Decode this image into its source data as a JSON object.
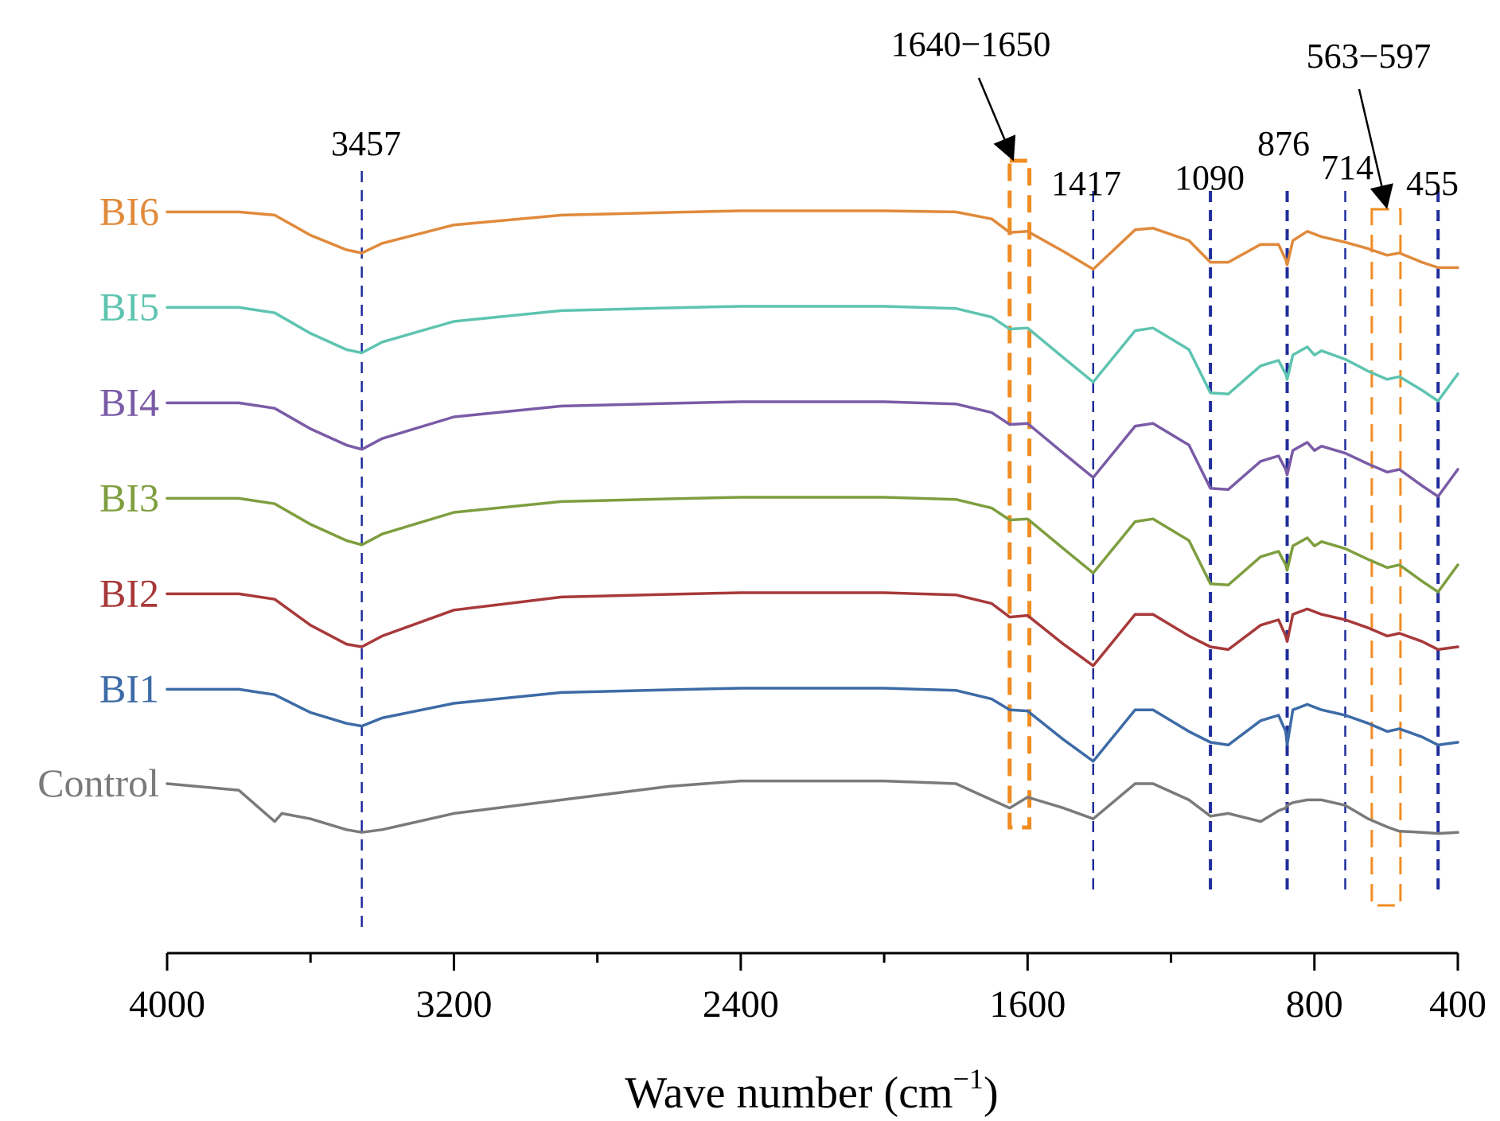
{
  "chart_data": {
    "type": "line",
    "title": "",
    "xlabel": "Wave number (cm",
    "xlabel_sup": "−1",
    "xlabel_close": ")",
    "ylabel": "",
    "xlim": [
      4000,
      400
    ],
    "x_ticks": [
      4000,
      3200,
      2400,
      1600,
      800,
      400
    ],
    "x_tick_labels": [
      "4000",
      "3200",
      "2400",
      "1600",
      "800",
      "400"
    ],
    "x_minor_ticks": [
      3600,
      2800,
      2000,
      1200
    ],
    "series": [
      {
        "name": "BI6",
        "color": "#E08A3C",
        "offset": 6,
        "points": [
          [
            4000,
            0.02
          ],
          [
            3800,
            0.02
          ],
          [
            3700,
            0.08
          ],
          [
            3600,
            0.45
          ],
          [
            3500,
            0.72
          ],
          [
            3457,
            0.78
          ],
          [
            3400,
            0.6
          ],
          [
            3200,
            0.26
          ],
          [
            2900,
            0.08
          ],
          [
            2600,
            0.03
          ],
          [
            2400,
            0.0
          ],
          [
            2000,
            0.0
          ],
          [
            1800,
            0.02
          ],
          [
            1700,
            0.15
          ],
          [
            1650,
            0.4
          ],
          [
            1600,
            0.38
          ],
          [
            1500,
            0.75
          ],
          [
            1417,
            1.08
          ],
          [
            1300,
            0.35
          ],
          [
            1250,
            0.32
          ],
          [
            1150,
            0.55
          ],
          [
            1090,
            0.95
          ],
          [
            1040,
            0.95
          ],
          [
            950,
            0.62
          ],
          [
            900,
            0.62
          ],
          [
            880,
            0.9
          ],
          [
            876,
            1.0
          ],
          [
            860,
            0.55
          ],
          [
            820,
            0.38
          ],
          [
            780,
            0.48
          ],
          [
            714,
            0.58
          ],
          [
            650,
            0.7
          ],
          [
            597,
            0.82
          ],
          [
            563,
            0.78
          ],
          [
            500,
            0.95
          ],
          [
            455,
            1.05
          ],
          [
            400,
            1.05
          ]
        ]
      },
      {
        "name": "BI5",
        "color": "#5EC4B0",
        "offset": 5,
        "points": [
          [
            4000,
            0.02
          ],
          [
            3800,
            0.02
          ],
          [
            3700,
            0.12
          ],
          [
            3600,
            0.5
          ],
          [
            3500,
            0.8
          ],
          [
            3457,
            0.86
          ],
          [
            3400,
            0.66
          ],
          [
            3200,
            0.28
          ],
          [
            2900,
            0.08
          ],
          [
            2600,
            0.03
          ],
          [
            2400,
            0.0
          ],
          [
            2000,
            0.0
          ],
          [
            1800,
            0.04
          ],
          [
            1700,
            0.2
          ],
          [
            1650,
            0.42
          ],
          [
            1600,
            0.4
          ],
          [
            1500,
            0.95
          ],
          [
            1417,
            1.4
          ],
          [
            1300,
            0.45
          ],
          [
            1250,
            0.4
          ],
          [
            1150,
            0.8
          ],
          [
            1090,
            1.6
          ],
          [
            1040,
            1.62
          ],
          [
            950,
            1.1
          ],
          [
            900,
            1.0
          ],
          [
            880,
            1.25
          ],
          [
            876,
            1.35
          ],
          [
            860,
            0.9
          ],
          [
            820,
            0.75
          ],
          [
            800,
            0.9
          ],
          [
            780,
            0.82
          ],
          [
            714,
            0.98
          ],
          [
            650,
            1.2
          ],
          [
            597,
            1.35
          ],
          [
            563,
            1.3
          ],
          [
            500,
            1.55
          ],
          [
            455,
            1.75
          ],
          [
            400,
            1.25
          ]
        ]
      },
      {
        "name": "BI4",
        "color": "#7A5BA6",
        "offset": 4,
        "points": [
          [
            4000,
            0.02
          ],
          [
            3800,
            0.02
          ],
          [
            3700,
            0.12
          ],
          [
            3600,
            0.5
          ],
          [
            3500,
            0.8
          ],
          [
            3457,
            0.88
          ],
          [
            3400,
            0.68
          ],
          [
            3200,
            0.28
          ],
          [
            2900,
            0.08
          ],
          [
            2600,
            0.03
          ],
          [
            2400,
            0.0
          ],
          [
            2000,
            0.0
          ],
          [
            1800,
            0.04
          ],
          [
            1700,
            0.2
          ],
          [
            1650,
            0.42
          ],
          [
            1600,
            0.4
          ],
          [
            1500,
            0.95
          ],
          [
            1417,
            1.4
          ],
          [
            1300,
            0.45
          ],
          [
            1250,
            0.4
          ],
          [
            1150,
            0.8
          ],
          [
            1090,
            1.6
          ],
          [
            1040,
            1.62
          ],
          [
            950,
            1.1
          ],
          [
            900,
            1.0
          ],
          [
            880,
            1.25
          ],
          [
            876,
            1.35
          ],
          [
            860,
            0.9
          ],
          [
            820,
            0.75
          ],
          [
            800,
            0.9
          ],
          [
            780,
            0.82
          ],
          [
            714,
            0.95
          ],
          [
            650,
            1.15
          ],
          [
            597,
            1.3
          ],
          [
            563,
            1.25
          ],
          [
            500,
            1.55
          ],
          [
            455,
            1.75
          ],
          [
            400,
            1.25
          ]
        ]
      },
      {
        "name": "BI3",
        "color": "#7E9E3F",
        "offset": 3,
        "points": [
          [
            4000,
            0.02
          ],
          [
            3800,
            0.02
          ],
          [
            3700,
            0.12
          ],
          [
            3600,
            0.5
          ],
          [
            3500,
            0.8
          ],
          [
            3457,
            0.88
          ],
          [
            3400,
            0.68
          ],
          [
            3200,
            0.28
          ],
          [
            2900,
            0.08
          ],
          [
            2600,
            0.03
          ],
          [
            2400,
            0.0
          ],
          [
            2000,
            0.0
          ],
          [
            1800,
            0.04
          ],
          [
            1700,
            0.2
          ],
          [
            1650,
            0.42
          ],
          [
            1600,
            0.4
          ],
          [
            1500,
            0.95
          ],
          [
            1417,
            1.4
          ],
          [
            1300,
            0.45
          ],
          [
            1250,
            0.4
          ],
          [
            1150,
            0.8
          ],
          [
            1090,
            1.6
          ],
          [
            1040,
            1.62
          ],
          [
            950,
            1.1
          ],
          [
            900,
            1.0
          ],
          [
            880,
            1.25
          ],
          [
            876,
            1.35
          ],
          [
            860,
            0.9
          ],
          [
            820,
            0.75
          ],
          [
            800,
            0.9
          ],
          [
            780,
            0.82
          ],
          [
            714,
            0.95
          ],
          [
            650,
            1.15
          ],
          [
            597,
            1.3
          ],
          [
            563,
            1.25
          ],
          [
            500,
            1.55
          ],
          [
            455,
            1.75
          ],
          [
            400,
            1.25
          ]
        ]
      },
      {
        "name": "BI2",
        "color": "#A8393A",
        "offset": 2,
        "points": [
          [
            4000,
            0.02
          ],
          [
            3800,
            0.02
          ],
          [
            3700,
            0.12
          ],
          [
            3600,
            0.6
          ],
          [
            3500,
            0.95
          ],
          [
            3457,
            1.0
          ],
          [
            3400,
            0.8
          ],
          [
            3200,
            0.32
          ],
          [
            2900,
            0.08
          ],
          [
            2600,
            0.03
          ],
          [
            2400,
            0.0
          ],
          [
            2000,
            0.0
          ],
          [
            1800,
            0.04
          ],
          [
            1700,
            0.2
          ],
          [
            1650,
            0.45
          ],
          [
            1600,
            0.42
          ],
          [
            1500,
            0.95
          ],
          [
            1417,
            1.35
          ],
          [
            1300,
            0.4
          ],
          [
            1250,
            0.4
          ],
          [
            1150,
            0.8
          ],
          [
            1090,
            1.0
          ],
          [
            1040,
            1.05
          ],
          [
            950,
            0.6
          ],
          [
            900,
            0.5
          ],
          [
            880,
            0.8
          ],
          [
            876,
            0.9
          ],
          [
            860,
            0.4
          ],
          [
            820,
            0.3
          ],
          [
            780,
            0.4
          ],
          [
            714,
            0.5
          ],
          [
            650,
            0.65
          ],
          [
            597,
            0.8
          ],
          [
            563,
            0.75
          ],
          [
            500,
            0.9
          ],
          [
            455,
            1.05
          ],
          [
            400,
            1.0
          ]
        ]
      },
      {
        "name": "BI1",
        "color": "#3D6BA6",
        "offset": 1,
        "points": [
          [
            4000,
            0.02
          ],
          [
            3800,
            0.02
          ],
          [
            3700,
            0.12
          ],
          [
            3600,
            0.45
          ],
          [
            3500,
            0.65
          ],
          [
            3457,
            0.7
          ],
          [
            3400,
            0.55
          ],
          [
            3200,
            0.28
          ],
          [
            2900,
            0.08
          ],
          [
            2600,
            0.03
          ],
          [
            2400,
            0.0
          ],
          [
            2000,
            0.0
          ],
          [
            1800,
            0.04
          ],
          [
            1700,
            0.2
          ],
          [
            1650,
            0.4
          ],
          [
            1600,
            0.42
          ],
          [
            1500,
            0.95
          ],
          [
            1417,
            1.35
          ],
          [
            1300,
            0.4
          ],
          [
            1250,
            0.4
          ],
          [
            1150,
            0.8
          ],
          [
            1090,
            1.0
          ],
          [
            1040,
            1.05
          ],
          [
            950,
            0.6
          ],
          [
            900,
            0.5
          ],
          [
            880,
            0.8
          ],
          [
            876,
            1.05
          ],
          [
            860,
            0.4
          ],
          [
            820,
            0.3
          ],
          [
            780,
            0.4
          ],
          [
            714,
            0.5
          ],
          [
            650,
            0.65
          ],
          [
            597,
            0.8
          ],
          [
            563,
            0.75
          ],
          [
            500,
            0.9
          ],
          [
            455,
            1.05
          ],
          [
            400,
            1.0
          ]
        ]
      },
      {
        "name": "Control",
        "color": "#7A7A7A",
        "offset": 0,
        "points": [
          [
            4000,
            0.0
          ],
          [
            3800,
            0.12
          ],
          [
            3700,
            0.7
          ],
          [
            3680,
            0.55
          ],
          [
            3600,
            0.65
          ],
          [
            3500,
            0.85
          ],
          [
            3457,
            0.9
          ],
          [
            3400,
            0.85
          ],
          [
            3200,
            0.55
          ],
          [
            2900,
            0.3
          ],
          [
            2600,
            0.05
          ],
          [
            2400,
            -0.05
          ],
          [
            2000,
            -0.05
          ],
          [
            1800,
            0.0
          ],
          [
            1700,
            0.3
          ],
          [
            1650,
            0.45
          ],
          [
            1600,
            0.25
          ],
          [
            1500,
            0.45
          ],
          [
            1417,
            0.65
          ],
          [
            1300,
            0.0
          ],
          [
            1250,
            0.0
          ],
          [
            1150,
            0.3
          ],
          [
            1090,
            0.6
          ],
          [
            1040,
            0.55
          ],
          [
            950,
            0.7
          ],
          [
            900,
            0.5
          ],
          [
            880,
            0.45
          ],
          [
            876,
            0.4
          ],
          [
            860,
            0.35
          ],
          [
            820,
            0.3
          ],
          [
            780,
            0.3
          ],
          [
            714,
            0.4
          ],
          [
            650,
            0.65
          ],
          [
            597,
            0.8
          ],
          [
            563,
            0.88
          ],
          [
            500,
            0.9
          ],
          [
            455,
            0.92
          ],
          [
            400,
            0.9
          ]
        ]
      }
    ],
    "peak_markers": [
      {
        "x": 3457,
        "label": "3457"
      },
      {
        "x": 1417,
        "label": "1417"
      },
      {
        "x": 1090,
        "label": "1090"
      },
      {
        "x": 876,
        "label": "876"
      },
      {
        "x": 714,
        "label": "714"
      },
      {
        "x": 455,
        "label": "455"
      }
    ],
    "range_boxes": [
      {
        "x0": 1650,
        "x1": 1595,
        "label": "1640−1650",
        "color": "#F08C22"
      },
      {
        "x0": 640,
        "x1": 560,
        "label": "563−597",
        "color": "#F08C22"
      }
    ],
    "marker_color": "#1F2D9C"
  }
}
